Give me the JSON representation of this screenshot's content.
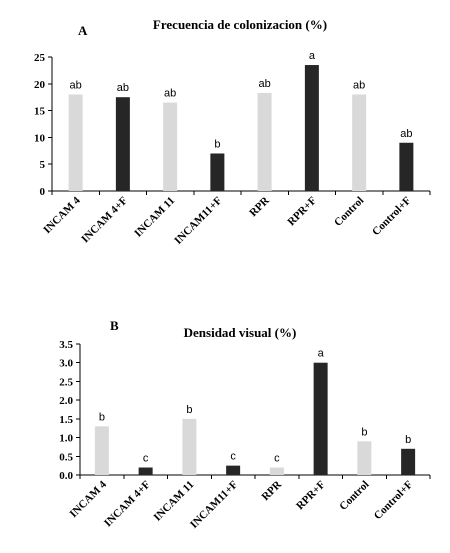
{
  "chart_data": [
    {
      "type": "bar",
      "panel": "A",
      "title": "Frecuencia de colonizacion (%)",
      "xlabel": "",
      "ylabel": "",
      "categories": [
        "INCAM 4",
        "INCAM 4+F",
        "INCAM 11",
        "INCAM11+F",
        "RPR",
        "RPR+F",
        "Control",
        "Control+F"
      ],
      "values": [
        18,
        17.5,
        16.5,
        7,
        18.3,
        23.5,
        18,
        9
      ],
      "labels": [
        "ab",
        "ab",
        "ab",
        "b",
        "ab",
        "a",
        "ab",
        "ab"
      ],
      "ylim": [
        0,
        25
      ],
      "yticks": [
        0,
        5,
        10,
        15,
        20,
        25
      ],
      "ytick_labels": [
        "0",
        "5",
        "10",
        "15",
        "20",
        "25"
      ],
      "grid": false,
      "colors": {
        "light": "#d9d9d9",
        "dark": "#262626"
      },
      "bar_shades": [
        "light",
        "dark",
        "light",
        "dark",
        "light",
        "dark",
        "light",
        "dark"
      ]
    },
    {
      "type": "bar",
      "panel": "B",
      "title": "Densidad visual (%)",
      "xlabel": "",
      "ylabel": "",
      "categories": [
        "INCAM 4",
        "INCAM 4+F",
        "INCAM 11",
        "INCAM11+F",
        "RPR",
        "RPR+F",
        "Control",
        "Control+F"
      ],
      "values": [
        1.3,
        0.2,
        1.5,
        0.25,
        0.2,
        3.0,
        0.9,
        0.7
      ],
      "labels": [
        "b",
        "c",
        "b",
        "c",
        "c",
        "a",
        "b",
        "b"
      ],
      "ylim": [
        0,
        3.5
      ],
      "yticks": [
        0,
        0.5,
        1,
        1.5,
        2,
        2.5,
        3,
        3.5
      ],
      "ytick_labels": [
        "0.0",
        "0.5",
        "1.0",
        "1.5",
        "2.0",
        "2.5",
        "3.0",
        "3.5"
      ],
      "grid": false,
      "colors": {
        "light": "#d9d9d9",
        "dark": "#262626"
      },
      "bar_shades": [
        "light",
        "dark",
        "light",
        "dark",
        "light",
        "dark",
        "light",
        "dark"
      ]
    }
  ]
}
